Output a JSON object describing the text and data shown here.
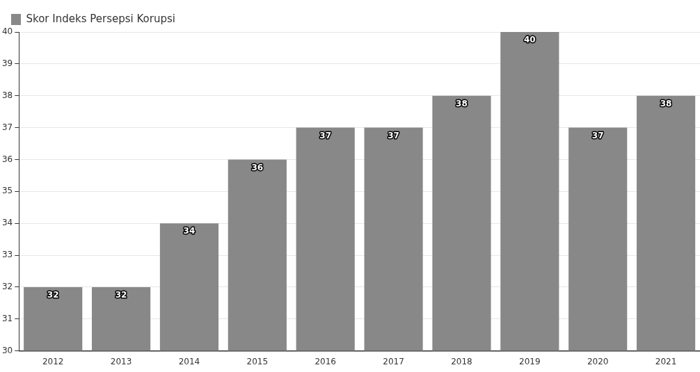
{
  "chart_data": {
    "type": "bar",
    "categories": [
      "2012",
      "2013",
      "2014",
      "2015",
      "2016",
      "2017",
      "2018",
      "2019",
      "2020",
      "2021"
    ],
    "series": [
      {
        "name": "Skor Indeks Persepsi Korupsi",
        "color": "#888888",
        "values": [
          32,
          32,
          34,
          36,
          37,
          37,
          38,
          40,
          37,
          38
        ]
      }
    ],
    "ylim": [
      30,
      40
    ],
    "yticks": [
      30,
      31,
      32,
      33,
      34,
      35,
      36,
      37,
      38,
      39,
      40
    ],
    "grid": "y",
    "legend": "top left",
    "data_labels": true
  }
}
